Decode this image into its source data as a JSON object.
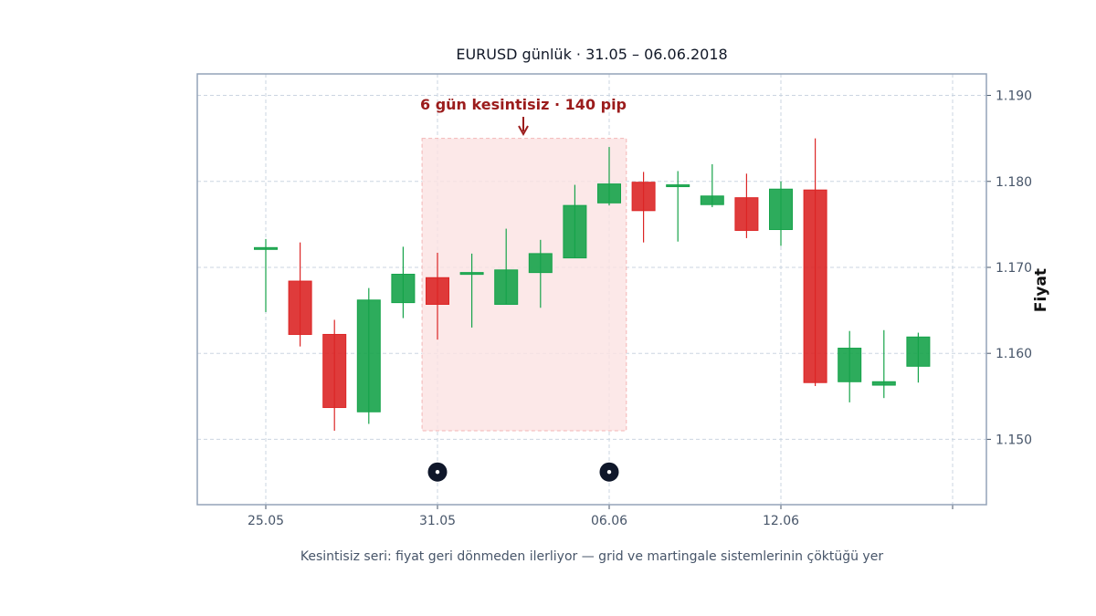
{
  "chart_data": {
    "type": "candlestick",
    "title": "EURUSD günlük · 31.05 – 06.06.2018",
    "caption": "Kesintisiz seri: fiyat geri dönmeden ilerliyor — grid ve martingale sistemlerinin çöktüğü yer",
    "ylabel": "Fiyat",
    "xlabel": "",
    "y_ticks": [
      "1.150",
      "1.160",
      "1.170",
      "1.180",
      "1.190"
    ],
    "ylim": [
      1.1424,
      1.1925
    ],
    "x_ticks": [
      {
        "label": "25.05",
        "index": 0
      },
      {
        "label": "31.05",
        "index": 5
      },
      {
        "label": "06.06",
        "index": 10
      },
      {
        "label": "12.06",
        "index": 15
      },
      {
        "label": "",
        "index": 20
      }
    ],
    "grid": true,
    "colors": {
      "up": "#16a34a",
      "down": "#dc2626",
      "highlight": "#fbe2e2",
      "annotation": "#9b1c1c",
      "marker": "#0f172a",
      "frame": "#94a3b8"
    },
    "candles": [
      {
        "o": 1.1723,
        "h": 1.1733,
        "l": 1.1648,
        "c": 1.1723
      },
      {
        "o": 1.1684,
        "h": 1.1729,
        "l": 1.1608,
        "c": 1.1622
      },
      {
        "o": 1.1622,
        "h": 1.1639,
        "l": 1.151,
        "c": 1.1537
      },
      {
        "o": 1.1532,
        "h": 1.1676,
        "l": 1.1518,
        "c": 1.1662
      },
      {
        "o": 1.1659,
        "h": 1.1724,
        "l": 1.1641,
        "c": 1.1692
      },
      {
        "o": 1.1688,
        "h": 1.1717,
        "l": 1.1616,
        "c": 1.1657
      },
      {
        "o": 1.1694,
        "h": 1.1716,
        "l": 1.163,
        "c": 1.1694
      },
      {
        "o": 1.1657,
        "h": 1.1745,
        "l": 1.1657,
        "c": 1.1697
      },
      {
        "o": 1.1694,
        "h": 1.1732,
        "l": 1.1653,
        "c": 1.1716
      },
      {
        "o": 1.1711,
        "h": 1.1796,
        "l": 1.1711,
        "c": 1.1772
      },
      {
        "o": 1.1775,
        "h": 1.184,
        "l": 1.1772,
        "c": 1.1797
      },
      {
        "o": 1.1799,
        "h": 1.1811,
        "l": 1.1729,
        "c": 1.1766
      },
      {
        "o": 1.1795,
        "h": 1.1812,
        "l": 1.173,
        "c": 1.1796
      },
      {
        "o": 1.1773,
        "h": 1.182,
        "l": 1.177,
        "c": 1.1783
      },
      {
        "o": 1.1781,
        "h": 1.1809,
        "l": 1.1734,
        "c": 1.1743
      },
      {
        "o": 1.1744,
        "h": 1.18,
        "l": 1.1725,
        "c": 1.1791
      },
      {
        "o": 1.179,
        "h": 1.185,
        "l": 1.1562,
        "c": 1.1566
      },
      {
        "o": 1.1567,
        "h": 1.1626,
        "l": 1.1543,
        "c": 1.1606
      },
      {
        "o": 1.1563,
        "h": 1.1627,
        "l": 1.1548,
        "c": 1.1567
      },
      {
        "o": 1.1585,
        "h": 1.1624,
        "l": 1.1566,
        "c": 1.1619
      }
    ],
    "highlight": {
      "from_index": 4.55,
      "to_index": 10.5,
      "y_low": 1.151,
      "y_high": 1.185
    },
    "annotation": {
      "text": "6 gün kesintisiz · 140 pip",
      "index": 7.5,
      "y": 1.1851
    },
    "markers": [
      {
        "index": 5,
        "y": 1.1462
      },
      {
        "index": 10,
        "y": 1.1462
      }
    ]
  }
}
